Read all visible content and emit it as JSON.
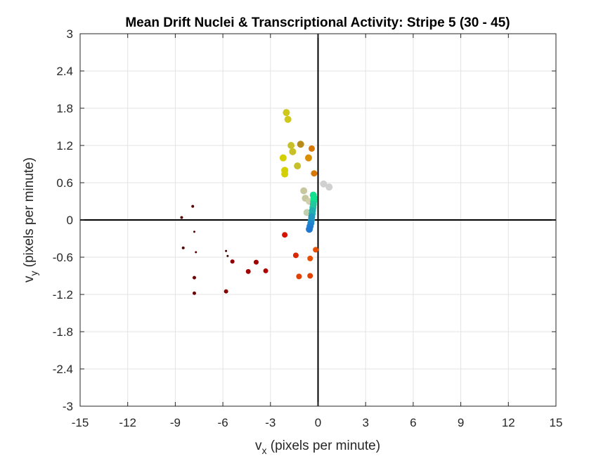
{
  "chart_data": {
    "type": "scatter",
    "title": "Mean Drift Nuclei & Transcriptional Activity: Stripe 5 (30 - 45)",
    "xlabel": {
      "main": "v",
      "sub": "x",
      "rest": " (pixels per minute)"
    },
    "ylabel": {
      "main": "v",
      "sub": "y",
      "rest": " (pixels per minute)"
    },
    "xlim": [
      -15,
      15
    ],
    "ylim": [
      -3,
      3
    ],
    "xticks": [
      -15,
      -12,
      -9,
      -6,
      -3,
      0,
      3,
      6,
      9,
      12,
      15
    ],
    "yticks": [
      -3,
      -2.4,
      -1.8,
      -1.2,
      -0.6,
      0,
      0.6,
      1.2,
      1.8,
      2.4,
      3
    ],
    "grid": true,
    "reference_lines": {
      "x": 0,
      "y": 0,
      "color": "#000000"
    },
    "points": [
      {
        "x": -8.6,
        "y": 0.04,
        "color": "#5a0000",
        "size": 2
      },
      {
        "x": -7.9,
        "y": 0.22,
        "color": "#5a0000",
        "size": 2
      },
      {
        "x": -7.8,
        "y": -0.19,
        "color": "#5a0000",
        "size": 1.5
      },
      {
        "x": -8.5,
        "y": -0.45,
        "color": "#5a0000",
        "size": 2
      },
      {
        "x": -7.7,
        "y": -0.52,
        "color": "#5a0000",
        "size": 1.5
      },
      {
        "x": -7.8,
        "y": -0.93,
        "color": "#6b0000",
        "size": 2.5
      },
      {
        "x": -7.8,
        "y": -1.18,
        "color": "#6b0000",
        "size": 2.5
      },
      {
        "x": -5.8,
        "y": -0.5,
        "color": "#3a0000",
        "size": 1.5
      },
      {
        "x": -5.7,
        "y": -0.58,
        "color": "#3a0000",
        "size": 1.5
      },
      {
        "x": -5.4,
        "y": -0.67,
        "color": "#8a0000",
        "size": 3
      },
      {
        "x": -5.8,
        "y": -1.15,
        "color": "#8a0000",
        "size": 3
      },
      {
        "x": -3.9,
        "y": -0.68,
        "color": "#a00000",
        "size": 3.5
      },
      {
        "x": -4.4,
        "y": -0.83,
        "color": "#a00000",
        "size": 3.5
      },
      {
        "x": -3.3,
        "y": -0.82,
        "color": "#b00000",
        "size": 3.5
      },
      {
        "x": -2.1,
        "y": -0.24,
        "color": "#d81000",
        "size": 4
      },
      {
        "x": -1.4,
        "y": -0.57,
        "color": "#d82800",
        "size": 4
      },
      {
        "x": -1.2,
        "y": -0.91,
        "color": "#e04000",
        "size": 4
      },
      {
        "x": -0.5,
        "y": -0.9,
        "color": "#e04000",
        "size": 4
      },
      {
        "x": -0.5,
        "y": -0.62,
        "color": "#e65000",
        "size": 4
      },
      {
        "x": -0.15,
        "y": -0.48,
        "color": "#e65000",
        "size": 4
      },
      {
        "x": -2.0,
        "y": 1.73,
        "color": "#d0c818",
        "size": 5
      },
      {
        "x": -1.9,
        "y": 1.62,
        "color": "#d0c818",
        "size": 5
      },
      {
        "x": -1.7,
        "y": 1.2,
        "color": "#c8c028",
        "size": 5
      },
      {
        "x": -1.6,
        "y": 1.1,
        "color": "#c8c028",
        "size": 5
      },
      {
        "x": -1.1,
        "y": 1.22,
        "color": "#b88a18",
        "size": 5
      },
      {
        "x": -1.3,
        "y": 0.87,
        "color": "#c8c028",
        "size": 5
      },
      {
        "x": -2.2,
        "y": 1.0,
        "color": "#d4d000",
        "size": 5
      },
      {
        "x": -2.1,
        "y": 0.8,
        "color": "#d4d000",
        "size": 5
      },
      {
        "x": -2.1,
        "y": 0.74,
        "color": "#d4d000",
        "size": 5
      },
      {
        "x": -0.6,
        "y": 1.0,
        "color": "#d89000",
        "size": 5
      },
      {
        "x": -0.4,
        "y": 1.15,
        "color": "#d87800",
        "size": 4.5
      },
      {
        "x": -0.25,
        "y": 0.75,
        "color": "#d87800",
        "size": 4.5
      },
      {
        "x": -0.9,
        "y": 0.47,
        "color": "#c8c8a0",
        "size": 5
      },
      {
        "x": -0.8,
        "y": 0.35,
        "color": "#c8c8a0",
        "size": 5
      },
      {
        "x": -0.55,
        "y": 0.3,
        "color": "#d0d0b0",
        "size": 5
      },
      {
        "x": 0.35,
        "y": 0.58,
        "color": "#d0d0d0",
        "size": 5
      },
      {
        "x": 0.7,
        "y": 0.53,
        "color": "#d0d0d0",
        "size": 5
      },
      {
        "x": -0.7,
        "y": 0.12,
        "color": "#c0d0b0",
        "size": 5
      },
      {
        "x": -0.3,
        "y": 0.4,
        "color": "#10e090",
        "size": 5
      },
      {
        "x": -0.25,
        "y": 0.35,
        "color": "#10e090",
        "size": 5
      },
      {
        "x": -0.28,
        "y": 0.3,
        "color": "#10e090",
        "size": 5
      },
      {
        "x": -0.3,
        "y": 0.25,
        "color": "#20c8a0",
        "size": 5
      },
      {
        "x": -0.32,
        "y": 0.2,
        "color": "#20c8a0",
        "size": 5
      },
      {
        "x": -0.35,
        "y": 0.15,
        "color": "#20b0b0",
        "size": 5
      },
      {
        "x": -0.37,
        "y": 0.1,
        "color": "#20b0b0",
        "size": 5
      },
      {
        "x": -0.4,
        "y": 0.05,
        "color": "#2098c0",
        "size": 5
      },
      {
        "x": -0.42,
        "y": 0.0,
        "color": "#2098c0",
        "size": 5
      },
      {
        "x": -0.45,
        "y": -0.05,
        "color": "#2088c8",
        "size": 5
      },
      {
        "x": -0.5,
        "y": -0.1,
        "color": "#2080d0",
        "size": 5
      },
      {
        "x": -0.55,
        "y": -0.15,
        "color": "#2078d0",
        "size": 5
      }
    ]
  }
}
